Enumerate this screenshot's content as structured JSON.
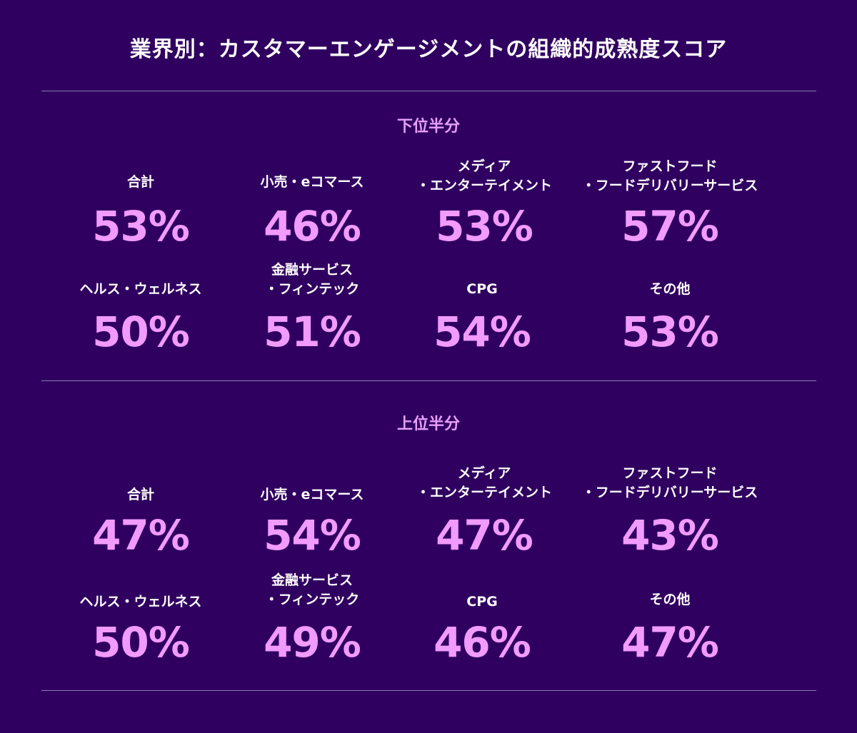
{
  "title": "業界別：カスタマーエンゲージメントの組織的成熟度スコア",
  "colors": {
    "background": "#300060",
    "accent": "#f29bff",
    "section_title": "#e8a0ff",
    "text": "#ffffff",
    "rule": "#8a7ab8"
  },
  "sections": [
    {
      "title": "下位半分",
      "items": [
        {
          "label": "合計",
          "value": "53%"
        },
        {
          "label": "小売・eコマース",
          "value": "46%"
        },
        {
          "label": "メディア\n・エンターテイメント",
          "value": "53%"
        },
        {
          "label": "ファストフード\n・フードデリバリーサービス",
          "value": "57%"
        },
        {
          "label": "ヘルス・ウェルネス",
          "value": "50%"
        },
        {
          "label": "金融サービス\n・フィンテック",
          "value": "51%"
        },
        {
          "label": "CPG",
          "value": "54%"
        },
        {
          "label": "その他",
          "value": "53%"
        }
      ]
    },
    {
      "title": "上位半分",
      "items": [
        {
          "label": "合計",
          "value": "47%"
        },
        {
          "label": "小売・eコマース",
          "value": "54%"
        },
        {
          "label": "メディア\n・エンターテイメント",
          "value": "47%"
        },
        {
          "label": "ファストフード\n・フードデリバリーサービス",
          "value": "43%"
        },
        {
          "label": "ヘルス・ウェルネス",
          "value": "50%"
        },
        {
          "label": "金融サービス\n・フィンテック",
          "value": "49%"
        },
        {
          "label": "CPG",
          "value": "46%"
        },
        {
          "label": "その他",
          "value": "47%"
        }
      ]
    }
  ]
}
